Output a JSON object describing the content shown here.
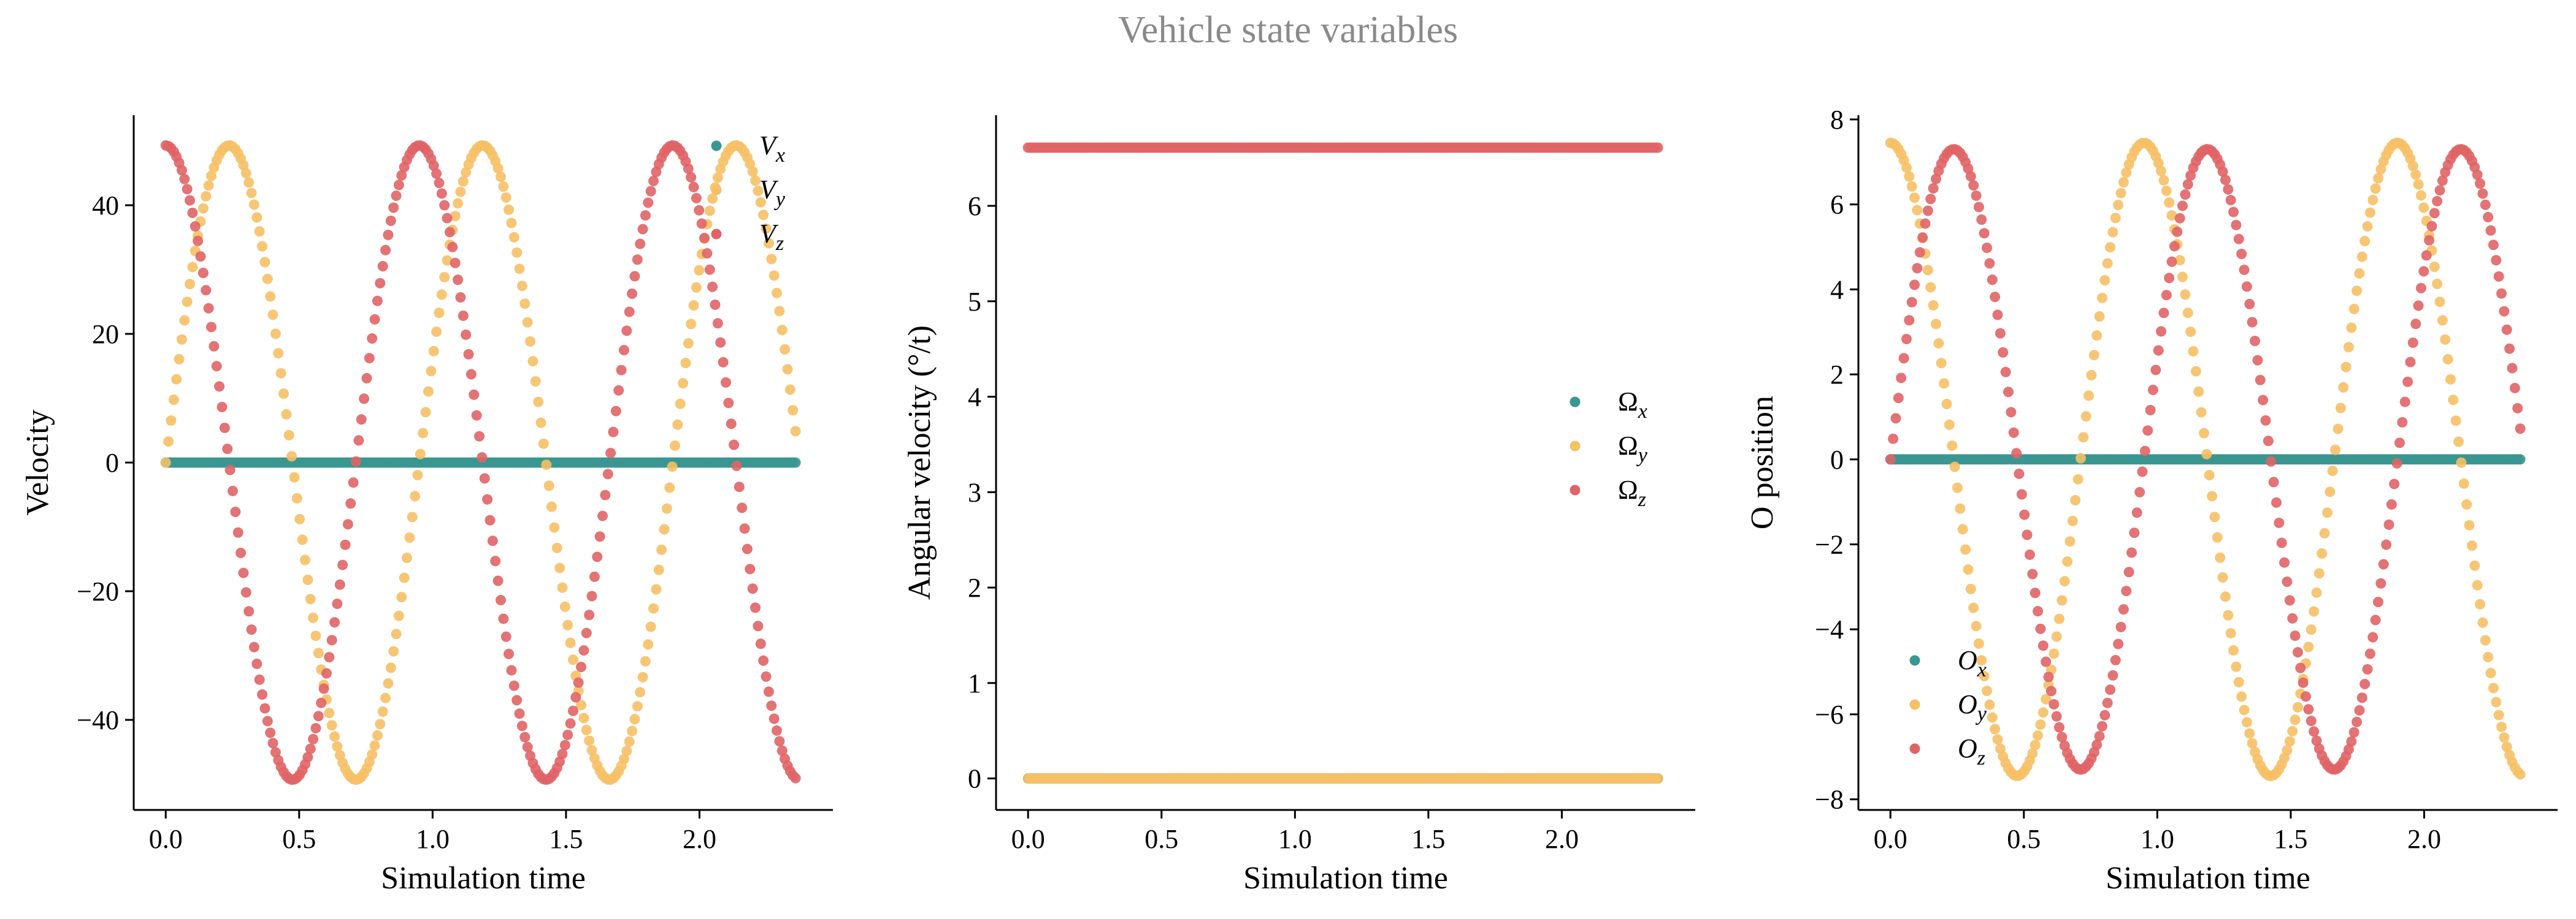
{
  "title": "Vehicle state variables",
  "colors": {
    "x": "#3a9690",
    "y": "#f6c066",
    "z": "#e06466"
  },
  "chart_data": [
    {
      "type": "scatter",
      "xlabel": "Simulation time",
      "ylabel": "Velocity",
      "xlim": [
        -0.12,
        2.5
      ],
      "ylim": [
        -54,
        54
      ],
      "xticks": [
        0.0,
        0.5,
        1.0,
        1.5,
        2.0
      ],
      "xtick_labels": [
        "0.0",
        "0.5",
        "1.0",
        "1.5",
        "2.0"
      ],
      "yticks": [
        -40,
        -20,
        0,
        20,
        40
      ],
      "ytick_labels": [
        "−40",
        "−20",
        "0",
        "20",
        "40"
      ],
      "legend_position": "upper-right",
      "x": {
        "start": 0.0,
        "end": 2.36,
        "count": 236
      },
      "series": [
        {
          "name": "V",
          "subscript": "x",
          "color": "#3a9690",
          "form": "constant",
          "value": 0
        },
        {
          "name": "V",
          "subscript": "y",
          "color": "#f6c066",
          "form": "sine",
          "amplitude": 49.3,
          "period": 0.95,
          "phase": 0
        },
        {
          "name": "V",
          "subscript": "z",
          "color": "#e06466",
          "form": "cosine",
          "amplitude": 49.3,
          "period": 0.95,
          "phase": 0
        }
      ]
    },
    {
      "type": "scatter",
      "xlabel": "Simulation time",
      "ylabel": "Angular velocity (°/t)",
      "xlim": [
        -0.12,
        2.5
      ],
      "ylim": [
        -0.33,
        6.95
      ],
      "xticks": [
        0.0,
        0.5,
        1.0,
        1.5,
        2.0
      ],
      "xtick_labels": [
        "0.0",
        "0.5",
        "1.0",
        "1.5",
        "2.0"
      ],
      "yticks": [
        0,
        1,
        2,
        3,
        4,
        5,
        6
      ],
      "ytick_labels": [
        "0",
        "1",
        "2",
        "3",
        "4",
        "5",
        "6"
      ],
      "legend_position": "center-right",
      "x": {
        "start": 0.0,
        "end": 2.36,
        "count": 236
      },
      "series": [
        {
          "name": "Ω",
          "subscript": "x",
          "color": "#3a9690",
          "form": "constant",
          "value": 0
        },
        {
          "name": "Ω",
          "subscript": "y",
          "color": "#f6c066",
          "form": "constant",
          "value": 0
        },
        {
          "name": "Ω",
          "subscript": "z",
          "color": "#e06466",
          "form": "constant",
          "value": 6.61
        }
      ]
    },
    {
      "type": "scatter",
      "xlabel": "Simulation time",
      "ylabel": "O position",
      "xlim": [
        -0.12,
        2.5
      ],
      "ylim": [
        -8.25,
        8.1
      ],
      "xticks": [
        0.0,
        0.5,
        1.0,
        1.5,
        2.0
      ],
      "xtick_labels": [
        "0.0",
        "0.5",
        "1.0",
        "1.5",
        "2.0"
      ],
      "yticks": [
        -8,
        -6,
        -4,
        -2,
        0,
        2,
        4,
        6,
        8
      ],
      "ytick_labels": [
        "−8",
        "−6",
        "−4",
        "−2",
        "0",
        "2",
        "4",
        "6",
        "8"
      ],
      "legend_position": "lower-left",
      "x": {
        "start": 0.0,
        "end": 2.36,
        "count": 236
      },
      "series": [
        {
          "name": "O",
          "subscript": "x",
          "color": "#3a9690",
          "form": "constant",
          "value": 0
        },
        {
          "name": "O",
          "subscript": "y",
          "color": "#f6c066",
          "form": "cosine",
          "amplitude": 7.45,
          "period": 0.95,
          "phase": 0
        },
        {
          "name": "O",
          "subscript": "z",
          "color": "#e06466",
          "form": "sine",
          "amplitude": 7.3,
          "period": 0.95,
          "phase": 0
        }
      ]
    }
  ]
}
